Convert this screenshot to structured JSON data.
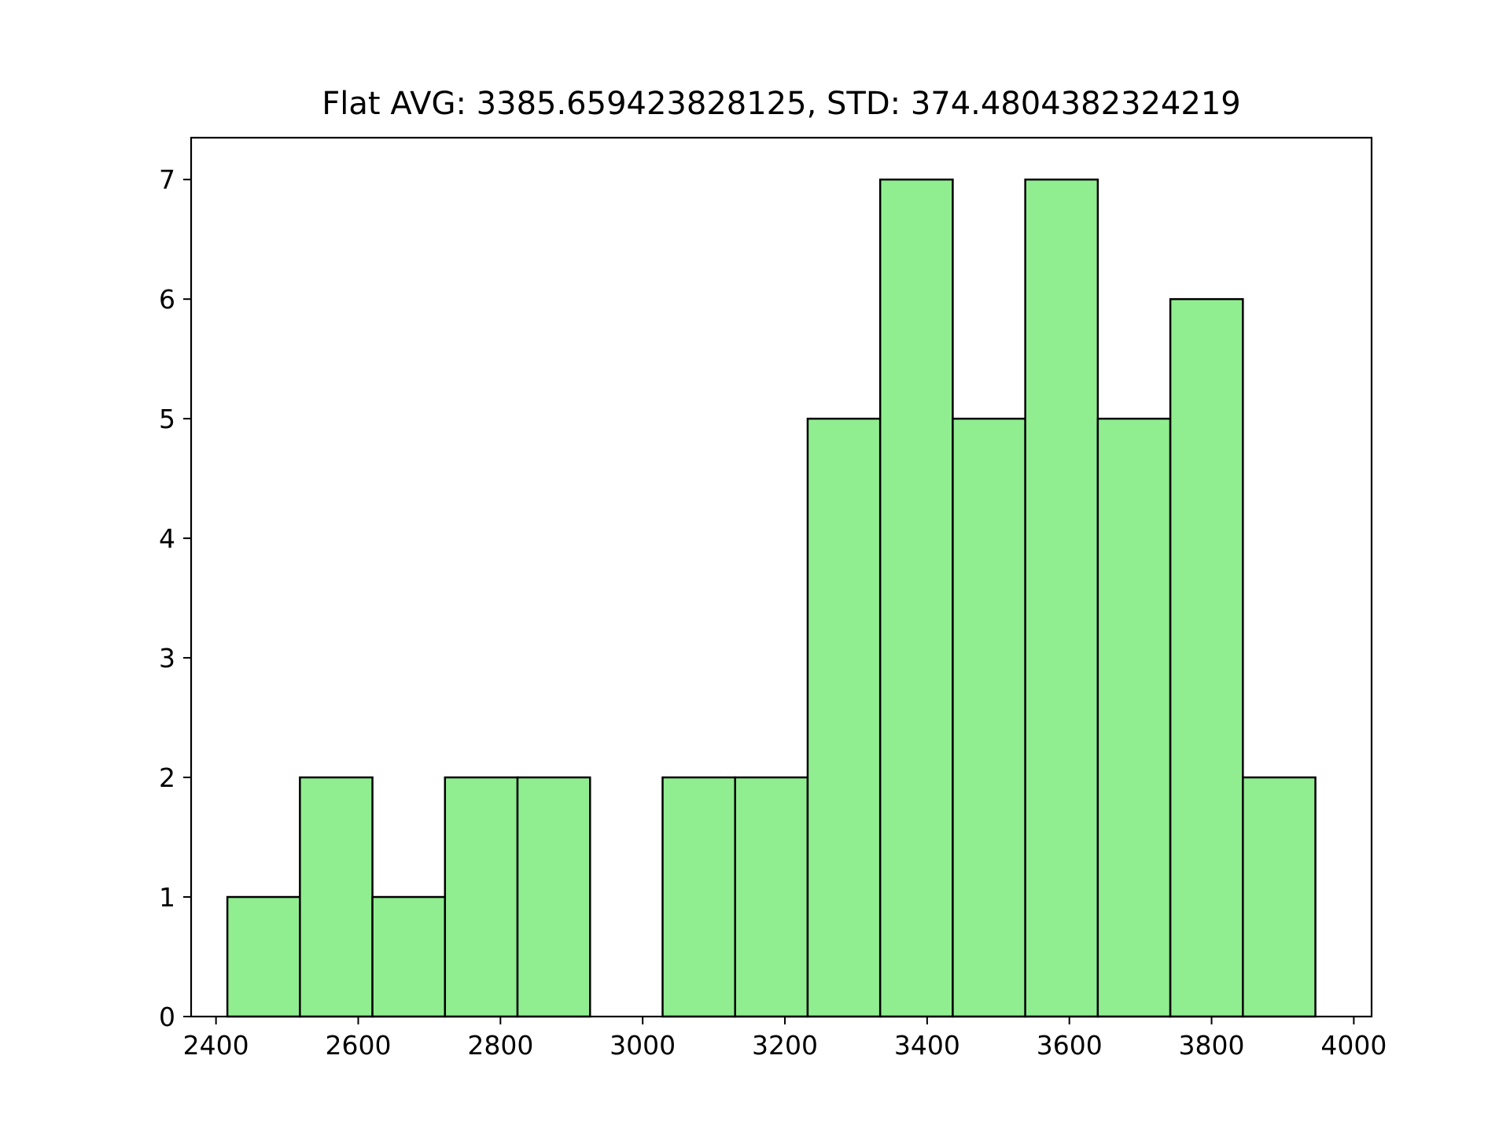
{
  "chart_data": {
    "type": "bar",
    "title": "Flat AVG: 3385.659423828125, STD: 374.4804382324219",
    "xlabel": "",
    "ylabel": "",
    "xlim": [
      2365,
      4025
    ],
    "ylim": [
      0,
      7.35
    ],
    "x_ticks": [
      2400,
      2600,
      2800,
      3000,
      3200,
      3400,
      3600,
      3800,
      4000
    ],
    "y_ticks": [
      0,
      1,
      2,
      3,
      4,
      5,
      6,
      7
    ],
    "bin_edges": [
      2416,
      2518,
      2620,
      2722,
      2824,
      2926,
      3028,
      3130,
      3232,
      3334,
      3436,
      3538,
      3640,
      3742,
      3844,
      3946
    ],
    "values": [
      1,
      2,
      1,
      2,
      2,
      0,
      2,
      2,
      5,
      7,
      5,
      7,
      5,
      6,
      2
    ],
    "bar_color": "#90ee90",
    "edge_color": "#000000",
    "grid": false
  }
}
